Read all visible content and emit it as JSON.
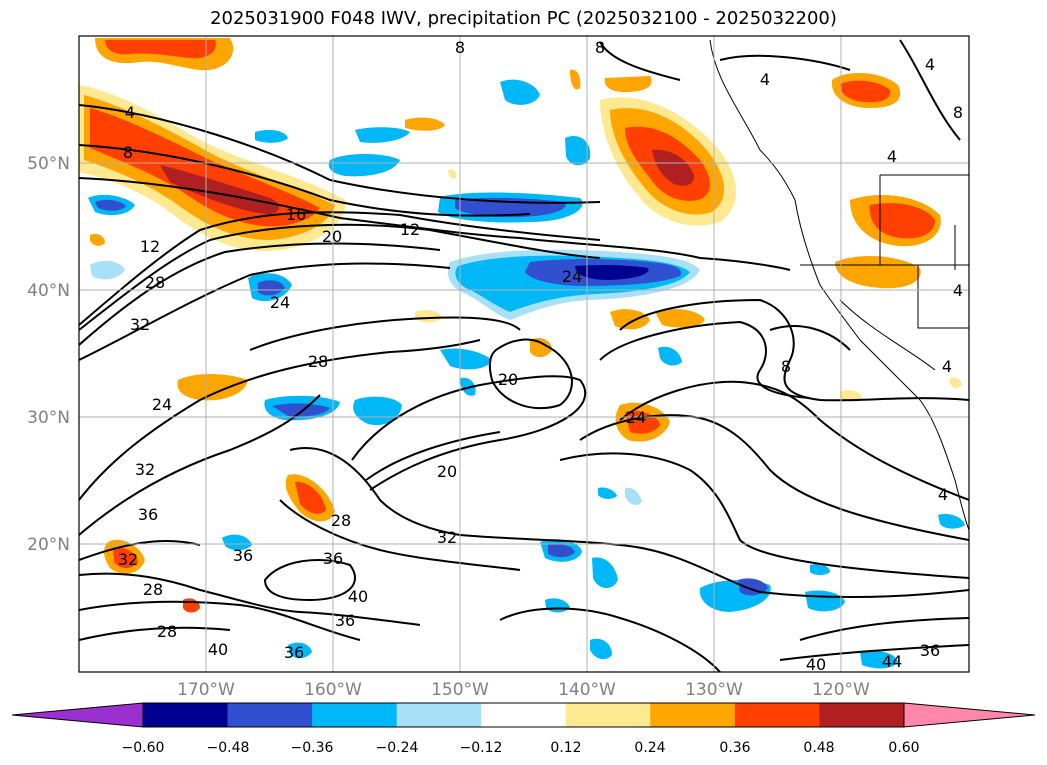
{
  "title": "2025031900 F048 IWV, precipitation PC (2025032100 - 2025032200)",
  "lat_labels": [
    "50°N",
    "40°N",
    "30°N",
    "20°N"
  ],
  "lon_labels": [
    "170°W",
    "160°W",
    "150°W",
    "140°W",
    "130°W",
    "120°W"
  ],
  "colorbar": {
    "tick_labels": [
      "−0.60",
      "−0.48",
      "−0.36",
      "−0.24",
      "−0.12",
      "0.12",
      "0.24",
      "0.36",
      "0.48",
      "0.60"
    ],
    "colors": [
      "#9a30d0",
      "#000090",
      "#3050d0",
      "#00b8f8",
      "#a8e0f8",
      "#ffffff",
      "#fee890",
      "#ffa500",
      "#ff4000",
      "#b02020",
      "#ff88aa"
    ]
  },
  "contour_labels": [
    {
      "text": "8"
    },
    {
      "text": "8"
    },
    {
      "text": "4"
    },
    {
      "text": "4"
    },
    {
      "text": "8"
    },
    {
      "text": "4"
    },
    {
      "text": "8"
    },
    {
      "text": "16"
    },
    {
      "text": "20"
    },
    {
      "text": "12"
    },
    {
      "text": "12"
    },
    {
      "text": "28"
    },
    {
      "text": "32"
    },
    {
      "text": "24"
    },
    {
      "text": "24"
    },
    {
      "text": "28"
    },
    {
      "text": "20"
    },
    {
      "text": "8"
    },
    {
      "text": "4"
    },
    {
      "text": "4"
    },
    {
      "text": "24"
    },
    {
      "text": "24"
    },
    {
      "text": "32"
    },
    {
      "text": "20"
    },
    {
      "text": "36"
    },
    {
      "text": "28"
    },
    {
      "text": "32"
    },
    {
      "text": "32"
    },
    {
      "text": "36"
    },
    {
      "text": "36"
    },
    {
      "text": "28"
    },
    {
      "text": "40"
    },
    {
      "text": "36"
    },
    {
      "text": "28"
    },
    {
      "text": "40"
    },
    {
      "text": "36"
    },
    {
      "text": "40"
    },
    {
      "text": "44"
    },
    {
      "text": "36"
    },
    {
      "text": "4"
    },
    {
      "text": "4"
    }
  ]
}
